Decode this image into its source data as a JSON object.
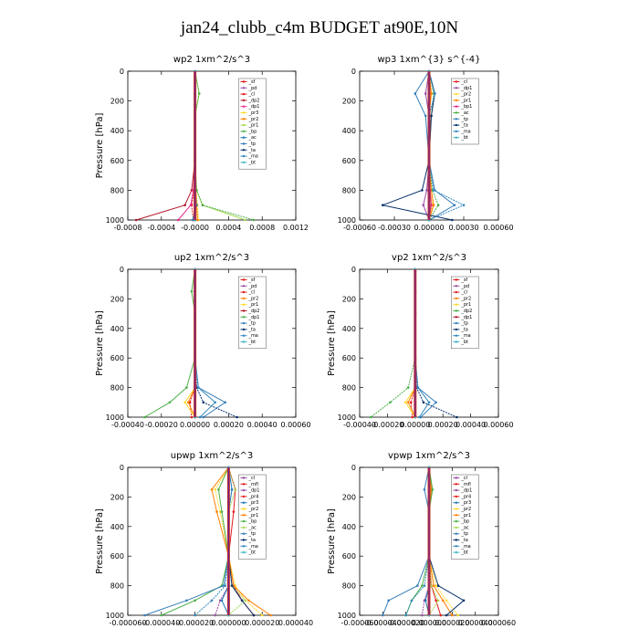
{
  "page": {
    "title": "jan24_clubb_c4m  BUDGET at90E,10N"
  },
  "chart_data": [
    {
      "type": "line",
      "title": "wp2  1xm^2/s^3",
      "ylabel": "Pressure [hPa]",
      "ylim": [
        1000,
        0
      ],
      "yticks": [
        0,
        200,
        400,
        600,
        800,
        1000
      ],
      "xlim": [
        -0.0008,
        0.0012
      ],
      "xticks": [
        -0.0008,
        -0.0004,
        0,
        0.0004,
        0.0008,
        0.0012
      ],
      "xticklabels": [
        "-0.0008",
        "-0.0004",
        "-0.0000",
        "0.0004",
        "0.0008",
        "0.0012"
      ],
      "legend_position": "top-right",
      "series": [
        {
          "name": "_sf",
          "color": "#e41a1c",
          "x": [
            0,
            0,
            0,
            0,
            0,
            0
          ]
        },
        {
          "name": "_pd",
          "color": "#984ea3",
          "x": [
            0,
            0,
            0,
            0,
            0,
            0
          ]
        },
        {
          "name": "_cl",
          "color": "#e41a1c",
          "x": [
            0,
            0,
            0,
            0,
            -1e-05,
            -4e-05,
            -2e-05
          ]
        },
        {
          "name": "_dp2",
          "color": "#b2182b",
          "x": [
            0,
            0,
            0,
            0,
            -4e-05,
            -0.00012,
            -0.0007
          ]
        },
        {
          "name": "_dp1",
          "color": "#e7298a",
          "x": [
            0,
            0,
            0,
            0,
            -2e-05,
            -5e-05,
            -0.0002
          ]
        },
        {
          "name": "_pr3",
          "color": "#ffd92f",
          "x": [
            0,
            0,
            0,
            0,
            1e-05,
            3e-05,
            4e-05
          ]
        },
        {
          "name": "_pr2",
          "color": "#ff7f00",
          "x": [
            0,
            0,
            0,
            0,
            1e-05,
            2e-05,
            3e-05
          ]
        },
        {
          "name": "_pr1",
          "color": "#a6d854",
          "x": [
            0,
            5e-05,
            0,
            0,
            2e-05,
            9e-05,
            0.0006
          ]
        },
        {
          "name": "_bp",
          "color": "#4daf4a",
          "x": [
            0,
            5e-05,
            0,
            0,
            2e-05,
            9e-05,
            0.0007
          ]
        },
        {
          "name": "_ac",
          "color": "#1f78b4",
          "x": [
            0,
            0,
            0,
            0,
            0,
            0,
            0
          ]
        },
        {
          "name": "_tp",
          "color": "#377eb8",
          "x": [
            0,
            0,
            0,
            0,
            0,
            2e-05,
            -3e-05
          ]
        },
        {
          "name": "_ta",
          "color": "#08306b",
          "x": [
            0,
            0,
            0,
            0,
            0,
            0,
            0
          ]
        },
        {
          "name": "_ma",
          "color": "#3288bd",
          "x": [
            0,
            0,
            0,
            0,
            0,
            0,
            0
          ]
        },
        {
          "name": "_bt",
          "color": "#41b6c4",
          "x": [
            0,
            0,
            0,
            0,
            0,
            0,
            0
          ]
        }
      ]
    },
    {
      "type": "line",
      "title": "wp3  1xm^{3} s^{-4}",
      "ylabel": "",
      "ylim": [
        1000,
        0
      ],
      "yticks": [
        0,
        200,
        400,
        600,
        800,
        1000
      ],
      "xlim": [
        -0.0006,
        0.0006
      ],
      "xticks": [
        -0.0006,
        -0.0003,
        0,
        0.0003,
        0.0006
      ],
      "xticklabels": [
        "-0.00060",
        "-0.00030",
        "0.00000",
        "0.00030",
        "0.00060"
      ],
      "legend_position": "top-right",
      "series": [
        {
          "name": "_cl",
          "color": "#e41a1c",
          "x": [
            0,
            0,
            0,
            0,
            0,
            0
          ]
        },
        {
          "name": "_dp1",
          "color": "#984ea3",
          "x": [
            0,
            -3e-05,
            0,
            0,
            -2e-05,
            -5e-05,
            0
          ]
        },
        {
          "name": "_pr2",
          "color": "#ffd92f",
          "x": [
            0,
            2e-05,
            0,
            0,
            1e-05,
            3e-05,
            0
          ]
        },
        {
          "name": "_pr1",
          "color": "#ff7f00",
          "x": [
            0,
            2e-05,
            0,
            0,
            2e-05,
            4e-05,
            0
          ]
        },
        {
          "name": "_bp1",
          "color": "#e7298a",
          "x": [
            0,
            0,
            0,
            0,
            1e-05,
            2e-05,
            0
          ]
        },
        {
          "name": "_ac",
          "color": "#4daf4a",
          "x": [
            0,
            4e-05,
            2e-05,
            0,
            3e-05,
            8e-05,
            0
          ]
        },
        {
          "name": "_tp",
          "color": "#377eb8",
          "x": [
            0,
            -0.00012,
            -3e-05,
            0,
            5e-05,
            0.00022,
            0
          ]
        },
        {
          "name": "_ta",
          "color": "#08306b",
          "x": [
            0,
            5e-05,
            2e-05,
            0,
            -6e-05,
            -0.0004,
            0.0002
          ]
        },
        {
          "name": "_ma",
          "color": "#3288bd",
          "x": [
            0,
            5e-05,
            0,
            0,
            4e-05,
            0.0003,
            0
          ]
        },
        {
          "name": "_bt",
          "color": "#41b6c4",
          "x": [
            0,
            0,
            0,
            0,
            0,
            0,
            0
          ]
        }
      ]
    },
    {
      "type": "line",
      "title": "up2  1xm^2/s^3",
      "ylabel": "Pressure [hPa]",
      "ylim": [
        1000,
        0
      ],
      "yticks": [
        0,
        200,
        400,
        600,
        800,
        1000
      ],
      "xlim": [
        -0.0004,
        0.0006
      ],
      "xticks": [
        -0.0004,
        -0.0002,
        0,
        0.0002,
        0.0004,
        0.0006
      ],
      "xticklabels": [
        "-0.00040",
        "-0.00020",
        "0.00000",
        "0.00020",
        "0.00040",
        "0.00060"
      ],
      "legend_position": "top-right",
      "series": [
        {
          "name": "_sf",
          "color": "#e41a1c",
          "x": [
            0,
            0,
            0,
            0,
            0,
            0,
            0
          ]
        },
        {
          "name": "_pd",
          "color": "#984ea3",
          "x": [
            0,
            0,
            0,
            0,
            0,
            0,
            0
          ]
        },
        {
          "name": "_cl",
          "color": "#e41a1c",
          "x": [
            0,
            0,
            0,
            0,
            0,
            -3e-05,
            -2e-05
          ]
        },
        {
          "name": "_pr2",
          "color": "#ff7f00",
          "x": [
            0,
            0,
            0,
            0,
            0,
            -4e-05,
            0
          ]
        },
        {
          "name": "_pr1",
          "color": "#ffd92f",
          "x": [
            0,
            0,
            0,
            0,
            0,
            -6e-05,
            0
          ]
        },
        {
          "name": "_dp2",
          "color": "#b2182b",
          "x": [
            0,
            0,
            0,
            0,
            0,
            0,
            0
          ]
        },
        {
          "name": "_dp1",
          "color": "#4daf4a",
          "x": [
            0,
            -2e-05,
            0,
            0,
            -5e-05,
            -0.00015,
            -0.0003
          ]
        },
        {
          "name": "_tp",
          "color": "#377eb8",
          "x": [
            0,
            0,
            0,
            0,
            2e-05,
            0.00018,
            5e-05
          ]
        },
        {
          "name": "_ta",
          "color": "#08306b",
          "x": [
            0,
            0,
            0,
            0,
            1e-05,
            5e-05,
            0.00025
          ]
        },
        {
          "name": "_ma",
          "color": "#3288bd",
          "x": [
            0,
            0,
            0,
            0,
            2e-05,
            0.00012,
            3e-05
          ]
        },
        {
          "name": "_bt",
          "color": "#41b6c4",
          "x": [
            0,
            0,
            0,
            0,
            0,
            0,
            0
          ]
        }
      ]
    },
    {
      "type": "line",
      "title": "vp2  1xm^2/s^3",
      "ylabel": "Pressure [hPa]",
      "ylim": [
        1000,
        0
      ],
      "yticks": [
        0,
        200,
        400,
        600,
        800,
        1000
      ],
      "xlim": [
        -0.0004,
        0.0006
      ],
      "xticks": [
        -0.0004,
        -0.0002,
        0,
        0.0002,
        0.0004,
        0.0006
      ],
      "xticklabels": [
        "-0.00040",
        "-0.00020",
        "0.00000",
        "0.00020",
        "0.00040",
        "0.00060"
      ],
      "legend_position": "top-right",
      "series": [
        {
          "name": "_sf",
          "color": "#e41a1c",
          "x": [
            0,
            0,
            0,
            0,
            0,
            0,
            0
          ]
        },
        {
          "name": "_pd",
          "color": "#984ea3",
          "x": [
            0,
            0,
            0,
            0,
            0,
            0,
            0
          ]
        },
        {
          "name": "_cl",
          "color": "#e41a1c",
          "x": [
            0,
            0,
            0,
            0,
            0,
            -3e-05,
            -2e-05
          ]
        },
        {
          "name": "_pr2",
          "color": "#ff7f00",
          "x": [
            0,
            0,
            0,
            0,
            0,
            -5e-05,
            0
          ]
        },
        {
          "name": "_pr1",
          "color": "#ffd92f",
          "x": [
            0,
            0,
            0,
            0,
            0,
            -7e-05,
            0
          ]
        },
        {
          "name": "_dp2",
          "color": "#4daf4a",
          "x": [
            0,
            0,
            0,
            0,
            -5e-05,
            -0.00018,
            -0.00032
          ]
        },
        {
          "name": "_dp1",
          "color": "#b2182b",
          "x": [
            0,
            0,
            0,
            0,
            0,
            0,
            0
          ]
        },
        {
          "name": "_tp",
          "color": "#377eb8",
          "x": [
            0,
            0,
            0,
            0,
            2e-05,
            0.00015,
            4e-05
          ]
        },
        {
          "name": "_ta",
          "color": "#08306b",
          "x": [
            0,
            0,
            0,
            0,
            1e-05,
            6e-05,
            0.0003
          ]
        },
        {
          "name": "_ma",
          "color": "#3288bd",
          "x": [
            0,
            0,
            0,
            0,
            2e-05,
            0.0001,
            3e-05
          ]
        },
        {
          "name": "_bt",
          "color": "#41b6c4",
          "x": [
            0,
            0,
            0,
            0,
            0,
            0,
            0
          ]
        }
      ]
    },
    {
      "type": "line",
      "title": "upwp  1xm^2/s^3",
      "ylabel": "Pressure [hPa]",
      "ylim": [
        1000,
        0
      ],
      "yticks": [
        0,
        200,
        400,
        600,
        800,
        1000
      ],
      "xlim": [
        -6e-05,
        4e-05
      ],
      "xticks": [
        -6e-05,
        -4e-05,
        -2e-05,
        0,
        2e-05,
        4e-05
      ],
      "xticklabels": [
        "-0.000060",
        "-0.000040",
        "-0.000020",
        "0.000000",
        "0.000020",
        "0.000040"
      ],
      "legend_position": "top-right",
      "series": [
        {
          "name": "_cl",
          "color": "#984ea3",
          "x": [
            0,
            0,
            0,
            0,
            0,
            0,
            0
          ]
        },
        {
          "name": "_mfl",
          "color": "#e41a1c",
          "x": [
            0,
            0,
            0,
            0,
            0,
            0,
            0
          ]
        },
        {
          "name": "_dp1",
          "color": "#984ea3",
          "x": [
            0,
            0,
            0,
            0,
            0,
            -5e-06,
            -8e-06
          ]
        },
        {
          "name": "_pr4",
          "color": "#e41a1c",
          "x": [
            0,
            4e-06,
            3e-06,
            0,
            3e-06,
            8e-06,
            1.5e-05
          ]
        },
        {
          "name": "_pr3",
          "color": "#1f78b4",
          "x": [
            0,
            2e-06,
            0,
            0,
            0,
            -4e-06,
            0
          ]
        },
        {
          "name": "_pr2",
          "color": "#ffd92f",
          "x": [
            0,
            -8e-06,
            -5e-06,
            0,
            4e-06,
            1e-05,
            2e-05
          ]
        },
        {
          "name": "_pr1",
          "color": "#ff7f00",
          "x": [
            0,
            -1e-05,
            -7e-06,
            0,
            3e-06,
            1.2e-05,
            2.5e-05
          ]
        },
        {
          "name": "_bp",
          "color": "#4daf4a",
          "x": [
            0,
            -6e-06,
            -4e-06,
            0,
            -4e-06,
            -2e-05,
            -4e-05
          ]
        },
        {
          "name": "_ac",
          "color": "#a6d854",
          "x": [
            0,
            4e-06,
            0,
            0,
            2e-06,
            1e-05,
            0
          ]
        },
        {
          "name": "_tp",
          "color": "#377eb8",
          "x": [
            0,
            0,
            0,
            0,
            -3e-06,
            -2.5e-05,
            -5e-05
          ]
        },
        {
          "name": "_ta",
          "color": "#08306b",
          "x": [
            0,
            0,
            0,
            0,
            2e-06,
            8e-06,
            1.5e-05
          ]
        },
        {
          "name": "_ma",
          "color": "#3288bd",
          "x": [
            0,
            0,
            0,
            0,
            -2e-06,
            -1e-05,
            -2e-05
          ]
        },
        {
          "name": "_bt",
          "color": "#41b6c4",
          "x": [
            0,
            0,
            0,
            0,
            0,
            0,
            0
          ]
        }
      ]
    },
    {
      "type": "line",
      "title": "vpwp  1xm^2/s^3",
      "ylabel": "Pressure [hPa]",
      "ylim": [
        1000,
        0
      ],
      "yticks": [
        0,
        200,
        400,
        600,
        800,
        1000
      ],
      "xlim": [
        -6e-05,
        6e-05
      ],
      "xticks": [
        -6e-05,
        -4e-05,
        -2e-05,
        0,
        2e-05,
        4e-05,
        6e-05
      ],
      "xticklabels": [
        "-0.000060",
        "-0.000040",
        "-0.000020",
        "0.000000",
        "0.000020",
        "0.000040",
        "0.000060"
      ],
      "legend_position": "top-right",
      "series": [
        {
          "name": "_cl",
          "color": "#984ea3",
          "x": [
            0,
            0,
            0,
            0,
            0,
            0,
            0
          ]
        },
        {
          "name": "_mfl",
          "color": "#e41a1c",
          "x": [
            0,
            0,
            0,
            0,
            0,
            0,
            0
          ]
        },
        {
          "name": "_dp1",
          "color": "#984ea3",
          "x": [
            0,
            0,
            0,
            0,
            0,
            -4e-06,
            -6e-06
          ]
        },
        {
          "name": "_pr4",
          "color": "#e41a1c",
          "x": [
            0,
            2e-06,
            0,
            0,
            2e-06,
            6e-06,
            1e-05
          ]
        },
        {
          "name": "_pr3",
          "color": "#1f78b4",
          "x": [
            0,
            0,
            0,
            0,
            0,
            -3e-06,
            0
          ]
        },
        {
          "name": "_pr2",
          "color": "#ffd92f",
          "x": [
            0,
            3e-06,
            0,
            0,
            6e-06,
            1.5e-05,
            2.5e-05
          ]
        },
        {
          "name": "_pr1",
          "color": "#ff7f00",
          "x": [
            0,
            2e-06,
            0,
            0,
            4e-06,
            1.2e-05,
            2e-05
          ]
        },
        {
          "name": "_bp",
          "color": "#4daf4a",
          "x": [
            0,
            3e-06,
            0,
            0,
            -6e-06,
            -1.5e-05,
            -2e-05
          ]
        },
        {
          "name": "_ac",
          "color": "#a6d854",
          "x": [
            0,
            0,
            0,
            0,
            2e-06,
            8e-06,
            0
          ]
        },
        {
          "name": "_tp",
          "color": "#377eb8",
          "x": [
            0,
            -4e-06,
            0,
            0,
            -1e-05,
            -3.5e-05,
            -4e-05
          ]
        },
        {
          "name": "_ta",
          "color": "#08306b",
          "x": [
            0,
            0,
            0,
            0,
            8e-06,
            3e-05,
            1.5e-05
          ]
        },
        {
          "name": "_ma",
          "color": "#3288bd",
          "x": [
            0,
            0,
            0,
            0,
            -4e-06,
            -1.5e-05,
            -2e-05
          ]
        },
        {
          "name": "_bt",
          "color": "#41b6c4",
          "x": [
            0,
            0,
            0,
            0,
            0,
            0,
            0
          ]
        }
      ]
    }
  ],
  "colors": {
    "background": "#ffffff",
    "axis": "#000000"
  }
}
